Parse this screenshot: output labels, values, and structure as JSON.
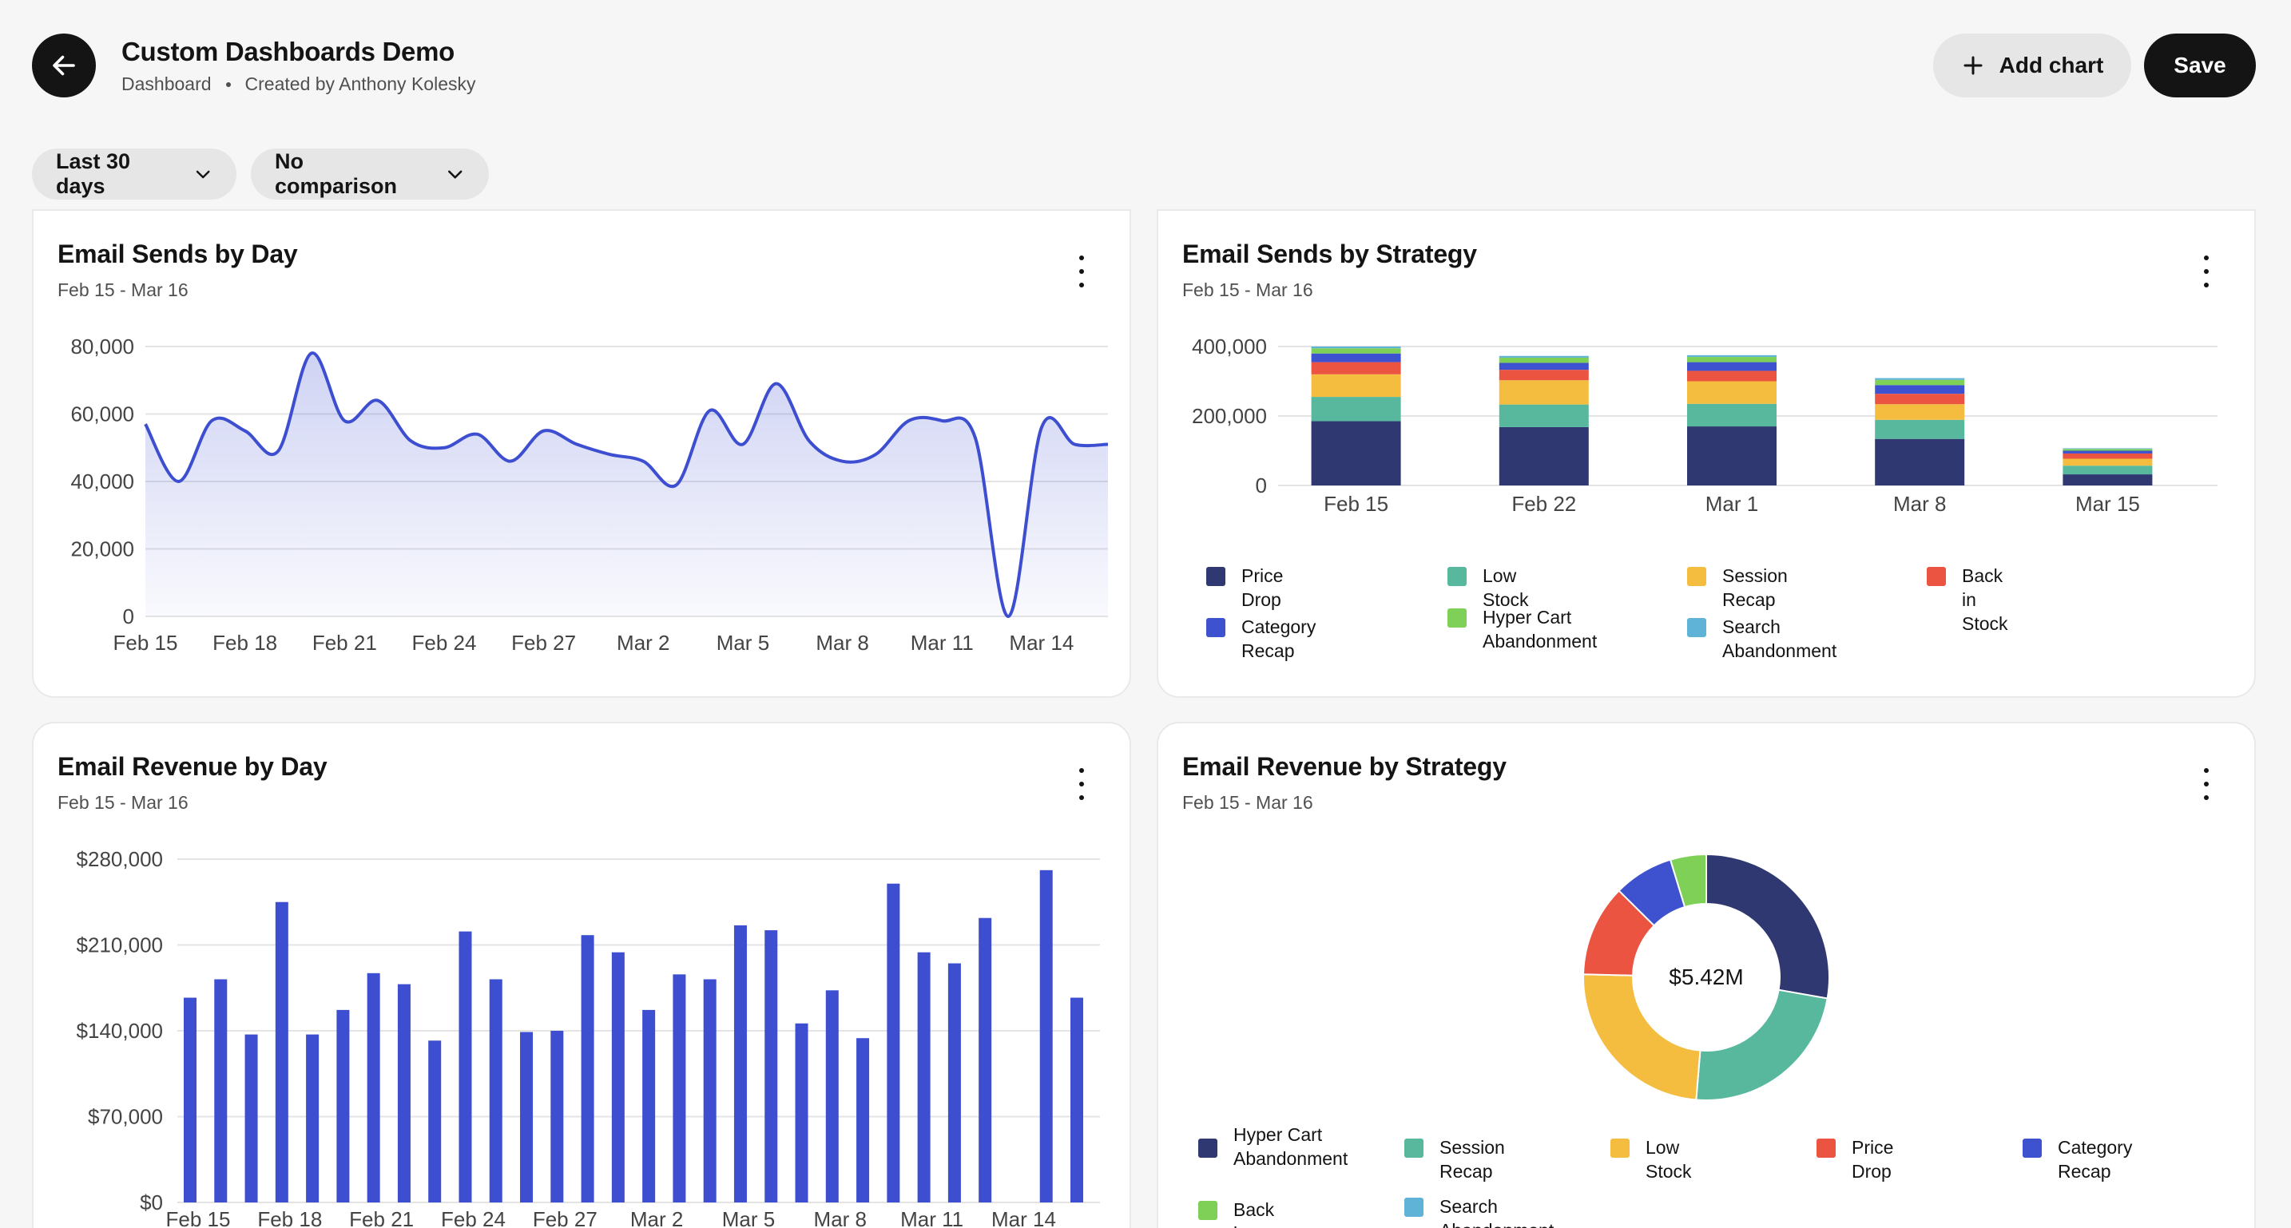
{
  "header": {
    "title": "Custom Dashboards Demo",
    "breadcrumb": "Dashboard",
    "created_by": "Created by Anthony Kolesky",
    "add_chart_label": "Add chart",
    "save_label": "Save"
  },
  "filters": {
    "date_range": "Last 30 days",
    "comparison": "No comparison"
  },
  "colors": {
    "primary": "#3d4fd0",
    "price_drop": "#2f3870",
    "low_stock": "#57b89e",
    "session_recap": "#f4bd40",
    "back_in_stock": "#ec5442",
    "category_recap": "#3e52cf",
    "hyper_cart": "#7ed156",
    "search_abandonment": "#5fb3d6"
  },
  "cards": {
    "sends_by_day": {
      "title": "Email Sends by Day",
      "subtitle": "Feb 15 - Mar 16"
    },
    "sends_by_strategy": {
      "title": "Email Sends by Strategy",
      "subtitle": "Feb 15 - Mar 16"
    },
    "revenue_by_day": {
      "title": "Email Revenue by Day",
      "subtitle": "Feb 15 - Mar 16"
    },
    "revenue_by_strategy": {
      "title": "Email Revenue by Strategy",
      "subtitle": "Feb 15 - Mar 16",
      "center_label": "$5.42M"
    }
  },
  "chart_data": [
    {
      "type": "area",
      "title": "Email Sends by Day",
      "ylim": [
        0,
        80000
      ],
      "yticks": [
        "80,000",
        "60,000",
        "40,000",
        "20,000",
        "0"
      ],
      "xticks": [
        "Feb 15",
        "Feb 18",
        "Feb 21",
        "Feb 24",
        "Feb 27",
        "Mar 2",
        "Mar 5",
        "Mar 8",
        "Mar 11",
        "Mar 14"
      ],
      "x": [
        "Feb 15",
        "Feb 16",
        "Feb 17",
        "Feb 18",
        "Feb 19",
        "Feb 20",
        "Feb 21",
        "Feb 22",
        "Feb 23",
        "Feb 24",
        "Feb 25",
        "Feb 26",
        "Feb 27",
        "Feb 28",
        "Mar 1",
        "Mar 2",
        "Mar 3",
        "Mar 4",
        "Mar 5",
        "Mar 6",
        "Mar 7",
        "Mar 8",
        "Mar 9",
        "Mar 10",
        "Mar 11",
        "Mar 12",
        "Mar 13",
        "Mar 14",
        "Mar 15",
        "Mar 16"
      ],
      "values": [
        57000,
        40000,
        58000,
        55000,
        49000,
        78000,
        58000,
        64000,
        52000,
        50000,
        54000,
        46000,
        55000,
        51000,
        48000,
        46000,
        39000,
        61000,
        51000,
        69000,
        52000,
        46000,
        48000,
        58000,
        58000,
        53000,
        0,
        56000,
        51000,
        51000
      ],
      "grid": true
    },
    {
      "type": "bar",
      "stacked": true,
      "title": "Email Sends by Strategy",
      "ylim": [
        0,
        400000
      ],
      "yticks": [
        "400,000",
        "200,000",
        "0"
      ],
      "categories": [
        "Feb 15",
        "Feb 22",
        "Mar 1",
        "Mar 8",
        "Mar 15"
      ],
      "series": [
        {
          "name": "Price Drop",
          "values": [
            185000,
            168000,
            170000,
            134000,
            32000
          ]
        },
        {
          "name": "Low Stock",
          "values": [
            70000,
            65000,
            65000,
            55000,
            25000
          ]
        },
        {
          "name": "Session Recap",
          "values": [
            65000,
            70000,
            65000,
            45000,
            20000
          ]
        },
        {
          "name": "Back in Stock",
          "values": [
            35000,
            30000,
            30000,
            30000,
            15000
          ]
        },
        {
          "name": "Category Recap",
          "values": [
            25000,
            20000,
            25000,
            25000,
            8000
          ]
        },
        {
          "name": "Hyper Cart Abandonment",
          "values": [
            15000,
            15000,
            15000,
            15000,
            5000
          ]
        },
        {
          "name": "Search Abandonment",
          "values": [
            5000,
            5000,
            5000,
            5000,
            2000
          ]
        }
      ],
      "legend_position": "bottom",
      "grid": true
    },
    {
      "type": "bar",
      "title": "Email Revenue by Day",
      "ylim": [
        0,
        280000
      ],
      "yticks": [
        "$280,000",
        "$210,000",
        "$140,000",
        "$70,000",
        "$0"
      ],
      "xticks": [
        "Feb 15",
        "Feb 18",
        "Feb 21",
        "Feb 24",
        "Feb 27",
        "Mar 2",
        "Mar 5",
        "Mar 8",
        "Mar 11",
        "Mar 14"
      ],
      "values": [
        167000,
        182000,
        137000,
        245000,
        137000,
        157000,
        187000,
        178000,
        132000,
        221000,
        182000,
        139000,
        140000,
        218000,
        204000,
        157000,
        186000,
        182000,
        226000,
        222000,
        146000,
        173000,
        134000,
        260000,
        204000,
        195000,
        232000,
        0,
        271000,
        167000
      ],
      "grid": true
    },
    {
      "type": "pie",
      "donut": true,
      "title": "Email Revenue by Strategy",
      "center_label": "$5.42M",
      "series": [
        {
          "name": "Price Drop",
          "value": 26.5
        },
        {
          "name": "Low Stock",
          "value": 22.5
        },
        {
          "name": "Session Recap",
          "value": 23.0
        },
        {
          "name": "Back in Stock",
          "value": 11.5
        },
        {
          "name": "Category Recap",
          "value": 7.5
        },
        {
          "name": "Hyper Cart Abandonment",
          "value": 4.5
        }
      ],
      "legend": [
        "Hyper Cart Abandonment",
        "Session Recap",
        "Low Stock",
        "Price Drop",
        "Category Recap",
        "Back in Stock",
        "Search Abandonment"
      ],
      "legend_position": "bottom"
    }
  ],
  "legends": {
    "sends_by_strategy": [
      {
        "label": "Price Drop",
        "color": "#2f3870"
      },
      {
        "label": "Low Stock",
        "color": "#57b89e"
      },
      {
        "label": "Session Recap",
        "color": "#f4bd40"
      },
      {
        "label": "Back in Stock",
        "color": "#ec5442"
      },
      {
        "label": "Category Recap",
        "color": "#3e52cf"
      },
      {
        "label": "Hyper Cart Abandonment",
        "color": "#7ed156"
      },
      {
        "label": "Search Abandonment",
        "color": "#5fb3d6"
      }
    ],
    "revenue_by_strategy": [
      {
        "label": "Hyper Cart Abandonment",
        "color": "#2f3870"
      },
      {
        "label": "Session Recap",
        "color": "#57b89e"
      },
      {
        "label": "Low Stock",
        "color": "#f4bd40"
      },
      {
        "label": "Price Drop",
        "color": "#ec5442"
      },
      {
        "label": "Category Recap",
        "color": "#3e52cf"
      },
      {
        "label": "Back in Stock",
        "color": "#7ed156"
      },
      {
        "label": "Search Abandonment",
        "color": "#5fb3d6"
      }
    ]
  }
}
